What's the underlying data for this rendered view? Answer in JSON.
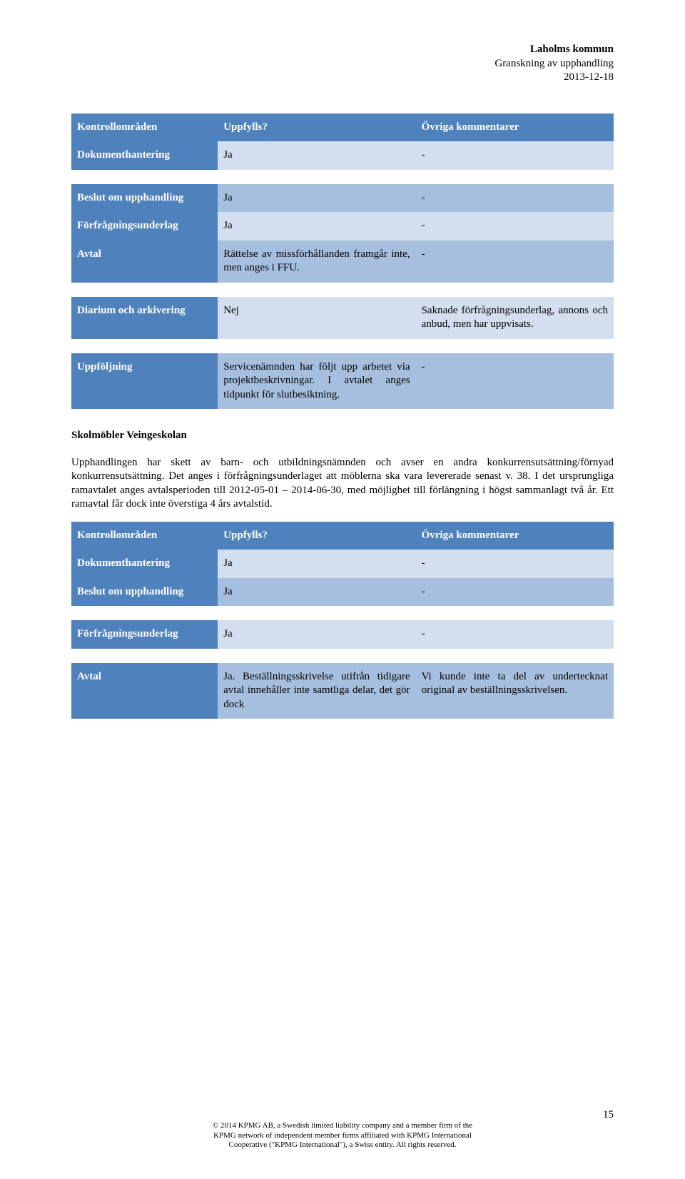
{
  "header": {
    "org": "Laholms kommun",
    "subject": "Granskning av upphandling",
    "date": "2013-12-18"
  },
  "table1": {
    "headers": {
      "c0": "Kontrollområden",
      "c1": "Uppfylls?",
      "c2": "Övriga kommentarer"
    },
    "rows": [
      {
        "label": "Dokumenthantering",
        "v1": "Ja",
        "v2": "-"
      },
      {
        "label": "Beslut om upphandling",
        "v1": "Ja",
        "v2": "-"
      },
      {
        "label": "Förfrågningsunderlag",
        "v1": "Ja",
        "v2": "-"
      },
      {
        "label": "Avtal",
        "v1": "Rättelse av missförhållanden framgår inte, men anges i FFU.",
        "v2": "-"
      },
      {
        "label": "Diarium och arkivering",
        "v1": "Nej",
        "v2": "Saknade förfrågningsunderlag, annons och anbud, men har uppvisats."
      },
      {
        "label": "Uppföljning",
        "v1": "Servicenämnden har följt upp arbetet via projektbeskrivningar. I avtalet anges tidpunkt för slutbesiktning.",
        "v2": "-"
      }
    ]
  },
  "section": {
    "title": "Skolmöbler Veingeskolan",
    "para": "Upphandlingen har skett av barn- och utbildningsnämnden och avser en andra konkurrensutsättning/förnyad konkurrensutsättning. Det anges i förfrågningsunderlaget att möblerna ska vara levererade senast v. 38. I det ursprungliga ramavtalet anges avtalsperioden till 2012-05-01 – 2014-06-30, med möjlighet till förlängning i högst sammanlagt två år. Ett ramavtal får dock inte överstiga 4 års avtalstid."
  },
  "table2": {
    "headers": {
      "c0": "Kontrollområden",
      "c1": "Uppfylls?",
      "c2": "Övriga kommentarer"
    },
    "rows": [
      {
        "label": "Dokumenthantering",
        "v1": "Ja",
        "v2": "-"
      },
      {
        "label": "Beslut om upphandling",
        "v1": "Ja",
        "v2": "-"
      },
      {
        "label": "Förfrågningsunderlag",
        "v1": "Ja",
        "v2": "-"
      },
      {
        "label": "Avtal",
        "v1": "Ja. Beställningsskrivelse utifrån tidigare avtal innehåller inte samtliga delar, det gör dock",
        "v2": "Vi kunde inte ta del av undertecknat original av beställningsskrivelsen."
      }
    ]
  },
  "footer": {
    "l1": "© 2014 KPMG AB, a Swedish limited liability company and a member firm of the",
    "l2": "KPMG network of independent member firms affiliated with KPMG International",
    "l3": "Cooperative (\"KPMG International\"), a Swiss entity. All rights reserved.",
    "page": "15"
  },
  "colors": {
    "header_bg": "#4f81bd",
    "row_light": "#d3dfee",
    "row_dark": "#a7bfde"
  }
}
